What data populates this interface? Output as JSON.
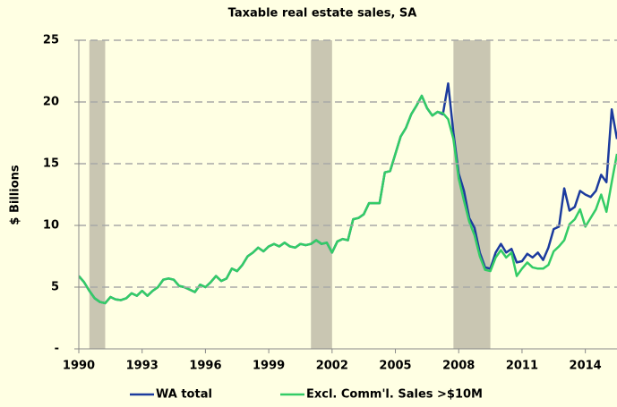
{
  "chart_data": {
    "type": "line",
    "title": "Taxable real estate sales, SA",
    "y_label": "$ Billions",
    "x": [
      1990,
      1990.25,
      1990.5,
      1990.75,
      1991,
      1991.25,
      1991.5,
      1991.75,
      1992,
      1992.25,
      1992.5,
      1992.75,
      1993,
      1993.25,
      1993.5,
      1993.75,
      1994,
      1994.25,
      1994.5,
      1994.75,
      1995,
      1995.25,
      1995.5,
      1995.75,
      1996,
      1996.25,
      1996.5,
      1996.75,
      1997,
      1997.25,
      1997.5,
      1997.75,
      1998,
      1998.25,
      1998.5,
      1998.75,
      1999,
      1999.25,
      1999.5,
      1999.75,
      2000,
      2000.25,
      2000.5,
      2000.75,
      2001,
      2001.25,
      2001.5,
      2001.75,
      2002,
      2002.25,
      2002.5,
      2002.75,
      2003,
      2003.25,
      2003.5,
      2003.75,
      2004,
      2004.25,
      2004.5,
      2004.75,
      2005,
      2005.25,
      2005.5,
      2005.75,
      2006,
      2006.25,
      2006.5,
      2006.75,
      2007,
      2007.25,
      2007.5,
      2007.75,
      2008,
      2008.25,
      2008.5,
      2008.75,
      2009,
      2009.25,
      2009.5,
      2009.75,
      2010,
      2010.25,
      2010.5,
      2010.75,
      2011,
      2011.25,
      2011.5,
      2011.75,
      2012,
      2012.25,
      2012.5,
      2012.75,
      2013,
      2013.25,
      2013.5,
      2013.75,
      2014,
      2014.25,
      2014.5,
      2014.75,
      2015,
      2015.25,
      2015.5
    ],
    "series": [
      {
        "name": "WA total",
        "color": "#1c3b9e",
        "values": [
          5.9,
          5.4,
          4.7,
          4.1,
          3.8,
          3.7,
          4.2,
          4.0,
          3.95,
          4.1,
          4.5,
          4.3,
          4.7,
          4.3,
          4.7,
          5.0,
          5.6,
          5.7,
          5.6,
          5.1,
          5.0,
          4.8,
          4.6,
          5.2,
          5.0,
          5.4,
          5.9,
          5.5,
          5.7,
          6.5,
          6.3,
          6.8,
          7.5,
          7.8,
          8.2,
          7.9,
          8.3,
          8.5,
          8.3,
          8.6,
          8.3,
          8.2,
          8.5,
          8.4,
          8.5,
          8.8,
          8.5,
          8.6,
          7.8,
          8.7,
          8.9,
          8.8,
          10.5,
          10.6,
          10.9,
          11.8,
          11.8,
          11.8,
          14.3,
          14.4,
          15.8,
          17.2,
          17.9,
          19.0,
          19.7,
          20.5,
          19.5,
          18.9,
          19.2,
          19.0,
          21.5,
          17.5,
          14.2,
          12.8,
          10.6,
          9.8,
          7.8,
          6.6,
          6.5,
          7.8,
          8.5,
          7.8,
          8.1,
          7.0,
          7.1,
          7.7,
          7.4,
          7.8,
          7.2,
          8.2,
          9.7,
          9.9,
          13.0,
          11.2,
          11.5,
          12.8,
          12.5,
          12.3,
          12.8,
          14.1,
          13.5,
          19.4,
          17.0
        ]
      },
      {
        "name": "Excl. Comm'l. Sales >$10M",
        "color": "#33cc66",
        "values": [
          5.9,
          5.4,
          4.7,
          4.1,
          3.8,
          3.7,
          4.2,
          4.0,
          3.95,
          4.1,
          4.5,
          4.3,
          4.7,
          4.3,
          4.7,
          5.0,
          5.6,
          5.7,
          5.6,
          5.1,
          5.0,
          4.8,
          4.6,
          5.2,
          5.0,
          5.4,
          5.9,
          5.5,
          5.7,
          6.5,
          6.3,
          6.8,
          7.5,
          7.8,
          8.2,
          7.9,
          8.3,
          8.5,
          8.3,
          8.6,
          8.3,
          8.2,
          8.5,
          8.4,
          8.5,
          8.8,
          8.5,
          8.6,
          7.8,
          8.7,
          8.9,
          8.8,
          10.5,
          10.6,
          10.9,
          11.8,
          11.8,
          11.8,
          14.3,
          14.4,
          15.8,
          17.2,
          17.9,
          19.0,
          19.7,
          20.5,
          19.5,
          18.9,
          19.2,
          19.1,
          18.6,
          17.0,
          13.8,
          12.0,
          10.3,
          9.2,
          7.5,
          6.4,
          6.3,
          7.4,
          8.0,
          7.4,
          7.8,
          5.9,
          6.5,
          7.0,
          6.6,
          6.5,
          6.5,
          6.8,
          7.9,
          8.3,
          8.8,
          10.1,
          10.5,
          11.3,
          9.9,
          10.6,
          11.3,
          12.5,
          11.1,
          13.5,
          15.8
        ]
      }
    ],
    "shaded_ranges": [
      [
        1990.5,
        1991.25
      ],
      [
        2001.0,
        2002.0
      ],
      [
        2007.75,
        2009.5
      ]
    ],
    "shade_color": "#c9c6b2",
    "xlim": [
      1990,
      2015.5
    ],
    "xticks": [
      1990,
      1993,
      1996,
      1999,
      2002,
      2005,
      2008,
      2011,
      2014
    ],
    "ylim": [
      0,
      25
    ],
    "yticks": [
      {
        "value": 0,
        "label": "-"
      },
      5,
      10,
      15,
      20,
      25
    ],
    "grid": true,
    "legend": "bottom"
  }
}
